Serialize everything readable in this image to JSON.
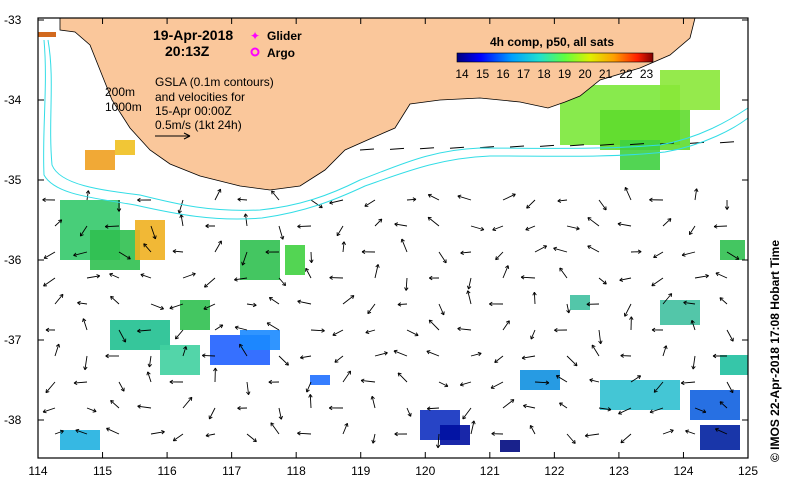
{
  "map": {
    "date_label": "19-Apr-2018",
    "time_label": "20:13Z",
    "legend": {
      "glider": {
        "label": "Glider",
        "color": "#ff00ff"
      },
      "argo": {
        "label": "Argo",
        "color": "#ff00ff"
      }
    },
    "notes": {
      "line1": "GSLA (0.1m contours)",
      "line2": "and velocities for",
      "line3": "15-Apr 00:00Z",
      "line4": "0.5m/s (1kt 24h)"
    },
    "isobaths": {
      "a": "200m",
      "b": "1000m"
    },
    "colorbar": {
      "title": "4h comp, p50, all sats",
      "ticks": [
        "14",
        "15",
        "16",
        "17",
        "18",
        "19",
        "20",
        "21",
        "22",
        "23"
      ]
    },
    "credit": "© IMOS 22-Apr-2018 17:08 Hobart Time",
    "x_ticks": [
      "114",
      "115",
      "116",
      "117",
      "118",
      "119",
      "120",
      "121",
      "122",
      "123",
      "124",
      "125"
    ],
    "y_ticks": [
      "-33",
      "-34",
      "-35",
      "-36",
      "-37",
      "-38"
    ],
    "colors": {
      "land": "#fac79b",
      "contour": "#33dde6",
      "frame": "#000000",
      "vector": "#000000"
    }
  }
}
